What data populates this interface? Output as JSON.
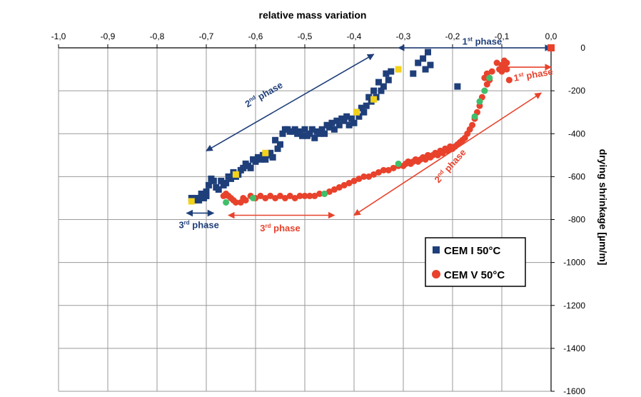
{
  "chart_data": {
    "type": "scatter",
    "title": "",
    "xlabel": "relative mass variation",
    "ylabel": "drying shrinkage  [µm/m]",
    "xlim": [
      -1.0,
      0.0
    ],
    "ylim": [
      -1600,
      0
    ],
    "x_axis_position": "top",
    "y_axis_position": "right",
    "x_ticks": [
      -1.0,
      -0.9,
      -0.8,
      -0.7,
      -0.6,
      -0.5,
      -0.4,
      -0.3,
      -0.2,
      -0.1,
      0.0
    ],
    "x_tick_labels": [
      "-1,0",
      "-0,9",
      "-0,8",
      "-0,7",
      "-0,6",
      "-0,5",
      "-0,4",
      "-0,3",
      "-0,2",
      "-0,1",
      "0,0"
    ],
    "y_ticks": [
      0,
      -200,
      -400,
      -600,
      -800,
      -1000,
      -1200,
      -1400,
      -1600
    ],
    "y_tick_labels": [
      "0",
      "-200",
      "-400",
      "-600",
      "-800",
      "-1000",
      "-1200",
      "-1400",
      "-1600"
    ],
    "grid": true,
    "legend_position": "right",
    "legend": [
      {
        "name": "CEM I 50°C",
        "marker": "square",
        "color": "#1f3f7a"
      },
      {
        "name": "CEM V 50°C",
        "marker": "circle",
        "color": "#e8422c"
      }
    ],
    "series": [
      {
        "name": "CEM I 50°C",
        "marker": "square",
        "color": "#1f3f7a",
        "points": [
          [
            0.0,
            0
          ],
          [
            -0.25,
            -20
          ],
          [
            -0.26,
            -50
          ],
          [
            -0.255,
            -100
          ],
          [
            -0.245,
            -80
          ],
          [
            -0.27,
            -70
          ],
          [
            -0.19,
            -180
          ],
          [
            -0.28,
            -120
          ],
          [
            -0.325,
            -110
          ],
          [
            -0.33,
            -150
          ],
          [
            -0.335,
            -120
          ],
          [
            -0.34,
            -180
          ],
          [
            -0.345,
            -200
          ],
          [
            -0.35,
            -160
          ],
          [
            -0.355,
            -230
          ],
          [
            -0.36,
            -200
          ],
          [
            -0.365,
            -250
          ],
          [
            -0.37,
            -230
          ],
          [
            -0.375,
            -270
          ],
          [
            -0.38,
            -300
          ],
          [
            -0.385,
            -280
          ],
          [
            -0.39,
            -320
          ],
          [
            -0.395,
            -300
          ],
          [
            -0.4,
            -350
          ],
          [
            -0.405,
            -330
          ],
          [
            -0.41,
            -360
          ],
          [
            -0.415,
            -320
          ],
          [
            -0.42,
            -340
          ],
          [
            -0.425,
            -330
          ],
          [
            -0.43,
            -360
          ],
          [
            -0.435,
            -340
          ],
          [
            -0.44,
            -380
          ],
          [
            -0.445,
            -350
          ],
          [
            -0.45,
            -370
          ],
          [
            -0.455,
            -360
          ],
          [
            -0.46,
            -400
          ],
          [
            -0.465,
            -380
          ],
          [
            -0.47,
            -400
          ],
          [
            -0.475,
            -390
          ],
          [
            -0.48,
            -420
          ],
          [
            -0.485,
            -380
          ],
          [
            -0.49,
            -400
          ],
          [
            -0.495,
            -410
          ],
          [
            -0.5,
            -380
          ],
          [
            -0.505,
            -410
          ],
          [
            -0.51,
            -390
          ],
          [
            -0.515,
            -400
          ],
          [
            -0.52,
            -380
          ],
          [
            -0.525,
            -390
          ],
          [
            -0.53,
            -390
          ],
          [
            -0.535,
            -380
          ],
          [
            -0.54,
            -380
          ],
          [
            -0.545,
            -400
          ],
          [
            -0.55,
            -450
          ],
          [
            -0.555,
            -470
          ],
          [
            -0.56,
            -430
          ],
          [
            -0.565,
            -510
          ],
          [
            -0.57,
            -490
          ],
          [
            -0.575,
            -500
          ],
          [
            -0.58,
            -520
          ],
          [
            -0.585,
            -500
          ],
          [
            -0.59,
            -520
          ],
          [
            -0.595,
            -510
          ],
          [
            -0.6,
            -530
          ],
          [
            -0.605,
            -520
          ],
          [
            -0.61,
            -560
          ],
          [
            -0.615,
            -550
          ],
          [
            -0.62,
            -540
          ],
          [
            -0.625,
            -560
          ],
          [
            -0.63,
            -570
          ],
          [
            -0.635,
            -590
          ],
          [
            -0.64,
            -600
          ],
          [
            -0.645,
            -580
          ],
          [
            -0.65,
            -610
          ],
          [
            -0.655,
            -600
          ],
          [
            -0.66,
            -630
          ],
          [
            -0.665,
            -640
          ],
          [
            -0.67,
            -620
          ],
          [
            -0.675,
            -660
          ],
          [
            -0.68,
            -650
          ],
          [
            -0.685,
            -620
          ],
          [
            -0.69,
            -610
          ],
          [
            -0.695,
            -640
          ],
          [
            -0.7,
            -690
          ],
          [
            -0.705,
            -700
          ],
          [
            -0.71,
            -680
          ],
          [
            -0.715,
            -710
          ],
          [
            -0.72,
            -700
          ],
          [
            -0.725,
            -710
          ],
          [
            -0.73,
            -700
          ],
          [
            -0.7,
            -670
          ]
        ]
      },
      {
        "name": "CEM V 50°C",
        "marker": "circle",
        "color": "#e8422c",
        "points": [
          [
            -0.095,
            -60
          ],
          [
            -0.09,
            -100
          ],
          [
            -0.085,
            -150
          ],
          [
            -0.1,
            -80
          ],
          [
            -0.11,
            -70
          ],
          [
            -0.105,
            -100
          ],
          [
            -0.12,
            -110
          ],
          [
            -0.125,
            -150
          ],
          [
            -0.13,
            -170
          ],
          [
            -0.135,
            -200
          ],
          [
            -0.14,
            -230
          ],
          [
            -0.145,
            -270
          ],
          [
            -0.15,
            -300
          ],
          [
            -0.155,
            -330
          ],
          [
            -0.16,
            -360
          ],
          [
            -0.165,
            -380
          ],
          [
            -0.17,
            -400
          ],
          [
            -0.175,
            -420
          ],
          [
            -0.18,
            -430
          ],
          [
            -0.185,
            -440
          ],
          [
            -0.19,
            -450
          ],
          [
            -0.195,
            -460
          ],
          [
            -0.2,
            -470
          ],
          [
            -0.205,
            -460
          ],
          [
            -0.21,
            -480
          ],
          [
            -0.215,
            -470
          ],
          [
            -0.22,
            -490
          ],
          [
            -0.225,
            -480
          ],
          [
            -0.23,
            -500
          ],
          [
            -0.235,
            -490
          ],
          [
            -0.24,
            -500
          ],
          [
            -0.245,
            -510
          ],
          [
            -0.25,
            -500
          ],
          [
            -0.255,
            -520
          ],
          [
            -0.26,
            -510
          ],
          [
            -0.265,
            -520
          ],
          [
            -0.27,
            -530
          ],
          [
            -0.275,
            -520
          ],
          [
            -0.28,
            -530
          ],
          [
            -0.285,
            -540
          ],
          [
            -0.29,
            -530
          ],
          [
            -0.295,
            -540
          ],
          [
            -0.3,
            -550
          ],
          [
            -0.31,
            -550
          ],
          [
            -0.32,
            -560
          ],
          [
            -0.33,
            -570
          ],
          [
            -0.34,
            -570
          ],
          [
            -0.35,
            -580
          ],
          [
            -0.36,
            -590
          ],
          [
            -0.37,
            -600
          ],
          [
            -0.38,
            -600
          ],
          [
            -0.39,
            -610
          ],
          [
            -0.4,
            -620
          ],
          [
            -0.41,
            -630
          ],
          [
            -0.42,
            -640
          ],
          [
            -0.43,
            -650
          ],
          [
            -0.44,
            -660
          ],
          [
            -0.45,
            -670
          ],
          [
            -0.46,
            -680
          ],
          [
            -0.47,
            -680
          ],
          [
            -0.48,
            -690
          ],
          [
            -0.49,
            -690
          ],
          [
            -0.5,
            -690
          ],
          [
            -0.51,
            -690
          ],
          [
            -0.52,
            -700
          ],
          [
            -0.53,
            -690
          ],
          [
            -0.54,
            -700
          ],
          [
            -0.55,
            -690
          ],
          [
            -0.56,
            -700
          ],
          [
            -0.57,
            -690
          ],
          [
            -0.58,
            -700
          ],
          [
            -0.59,
            -690
          ],
          [
            -0.6,
            -700
          ],
          [
            -0.61,
            -690
          ],
          [
            -0.62,
            -710
          ],
          [
            -0.625,
            -700
          ],
          [
            -0.63,
            -720
          ],
          [
            -0.64,
            -720
          ],
          [
            -0.645,
            -710
          ],
          [
            -0.65,
            -700
          ],
          [
            -0.655,
            -690
          ],
          [
            -0.66,
            -680
          ],
          [
            -0.665,
            -690
          ],
          [
            -0.135,
            -140
          ],
          [
            -0.13,
            -120
          ],
          [
            -0.09,
            -70
          ],
          [
            -0.095,
            -90
          ],
          [
            -0.1,
            -110
          ]
        ]
      }
    ],
    "highlight_points": [
      {
        "color": "#f2d21a",
        "marker": "square",
        "points": [
          [
            -0.73,
            -715
          ],
          [
            -0.58,
            -490
          ],
          [
            -0.395,
            -300
          ],
          [
            -0.36,
            -240
          ],
          [
            -0.31,
            -100
          ],
          [
            -0.64,
            -590
          ]
        ]
      },
      {
        "color": "#3fbf6a",
        "marker": "circle",
        "points": [
          [
            -0.66,
            -720
          ],
          [
            -0.605,
            -700
          ],
          [
            -0.46,
            -680
          ],
          [
            -0.31,
            -540
          ],
          [
            -0.155,
            -320
          ],
          [
            -0.145,
            -250
          ],
          [
            -0.125,
            -140
          ],
          [
            -0.135,
            -200
          ]
        ]
      }
    ],
    "corner_marker": {
      "color": "#e8422c",
      "marker": "square",
      "point": [
        0.0,
        0
      ]
    },
    "annotations": [
      {
        "text": "1st phase",
        "base": "1",
        "sup": "st",
        "tail": " phase",
        "color": "#1f3f7a",
        "arrow_from": [
          -0.31,
          0
        ],
        "arrow_to": [
          0.0,
          0
        ],
        "label_at": [
          -0.14,
          15
        ],
        "label_rotation": 0
      },
      {
        "text": "2nd phase",
        "base": "2",
        "sup": "nd",
        "tail": " phase",
        "color": "#1f3f7a",
        "arrow_from": [
          -0.36,
          -30
        ],
        "arrow_to": [
          -0.7,
          -480
        ],
        "label_at": [
          -0.58,
          -230
        ],
        "label_rotation": -30
      },
      {
        "text": "3rd phase",
        "base": "3",
        "sup": "rd",
        "tail": " phase",
        "color": "#1f3f7a",
        "arrow_from": [
          -0.74,
          -770
        ],
        "arrow_to": [
          -0.685,
          -770
        ],
        "label_at": [
          -0.715,
          -840
        ],
        "label_rotation": 0
      },
      {
        "text": "1st phase",
        "base": "1",
        "sup": "st",
        "tail": " phase",
        "color": "#e8422c",
        "arrow_from": [
          -0.1,
          -90
        ],
        "arrow_to": [
          0.0,
          -90
        ],
        "label_at": [
          -0.035,
          -140
        ],
        "label_rotation": -10
      },
      {
        "text": "2nd phase",
        "base": "2",
        "sup": "nd",
        "tail": " phase",
        "color": "#e8422c",
        "arrow_from": [
          -0.4,
          -780
        ],
        "arrow_to": [
          -0.02,
          -210
        ],
        "label_at": [
          -0.2,
          -560
        ],
        "label_rotation": -48
      },
      {
        "text": "3rd phase",
        "base": "3",
        "sup": "rd",
        "tail": " phase",
        "color": "#e8422c",
        "arrow_from": [
          -0.655,
          -780
        ],
        "arrow_to": [
          -0.44,
          -780
        ],
        "label_at": [
          -0.55,
          -855
        ],
        "label_rotation": 0
      }
    ]
  }
}
